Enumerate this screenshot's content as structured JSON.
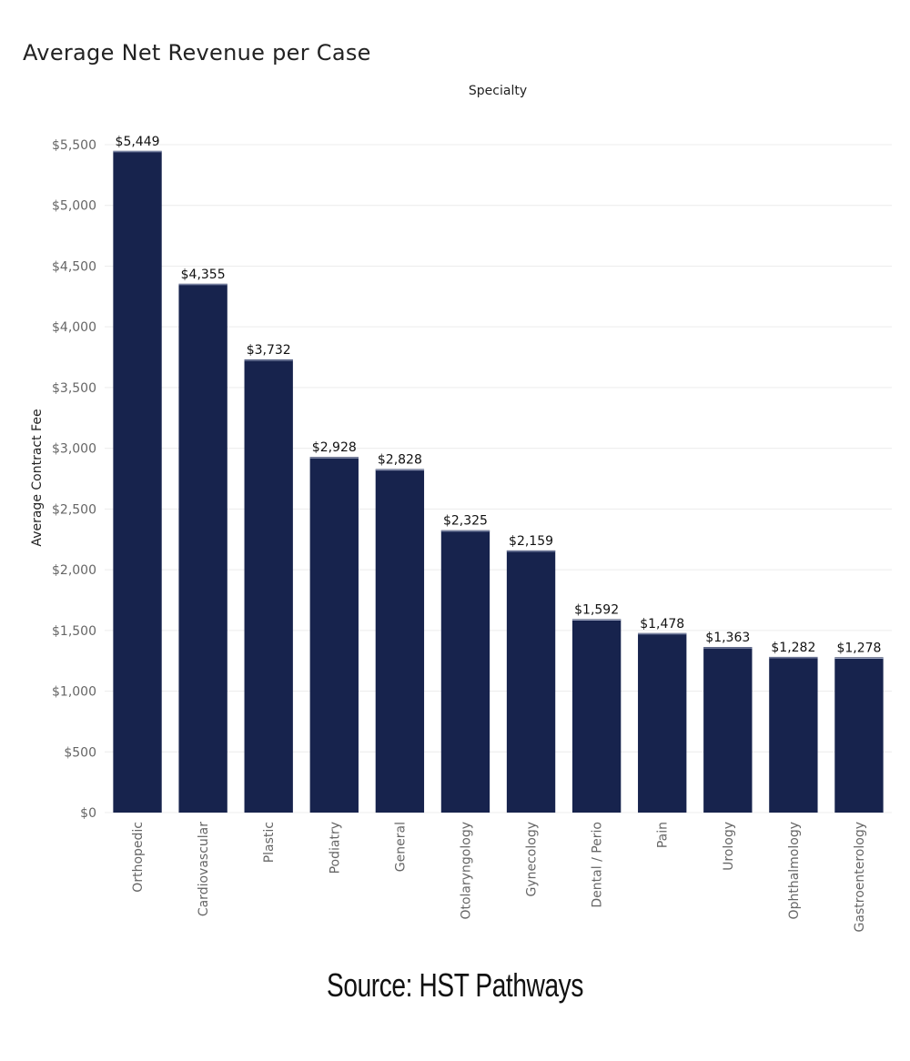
{
  "chart_data": {
    "type": "bar",
    "title": "Average Net Revenue per Case",
    "xlabel": "Specialty",
    "ylabel": "Average Contract Fee",
    "categories": [
      "Orthopedic",
      "Cardiovascular",
      "Plastic",
      "Podiatry",
      "General",
      "Otolaryngology",
      "Gynecology",
      "Dental / Perio",
      "Pain",
      "Urology",
      "Ophthalmology",
      "Gastroenterology"
    ],
    "values": [
      5449,
      4355,
      3732,
      2928,
      2828,
      2325,
      2159,
      1592,
      1478,
      1363,
      1282,
      1278
    ],
    "value_labels": [
      "$5,449",
      "$4,355",
      "$3,732",
      "$2,928",
      "$2,828",
      "$2,325",
      "$2,159",
      "$1,592",
      "$1,478",
      "$1,363",
      "$1,282",
      "$1,278"
    ],
    "yticks": [
      0,
      500,
      1000,
      1500,
      2000,
      2500,
      3000,
      3500,
      4000,
      4500,
      5000,
      5500
    ],
    "ytick_labels": [
      "$0",
      "$500",
      "$1,000",
      "$1,500",
      "$2,000",
      "$2,500",
      "$3,000",
      "$3,500",
      "$4,000",
      "$4,500",
      "$5,000",
      "$5,500"
    ],
    "ylim": [
      0,
      5500
    ],
    "grid": true,
    "legend": "none",
    "bar_color": "#17234d"
  },
  "source": "Source: HST Pathways"
}
